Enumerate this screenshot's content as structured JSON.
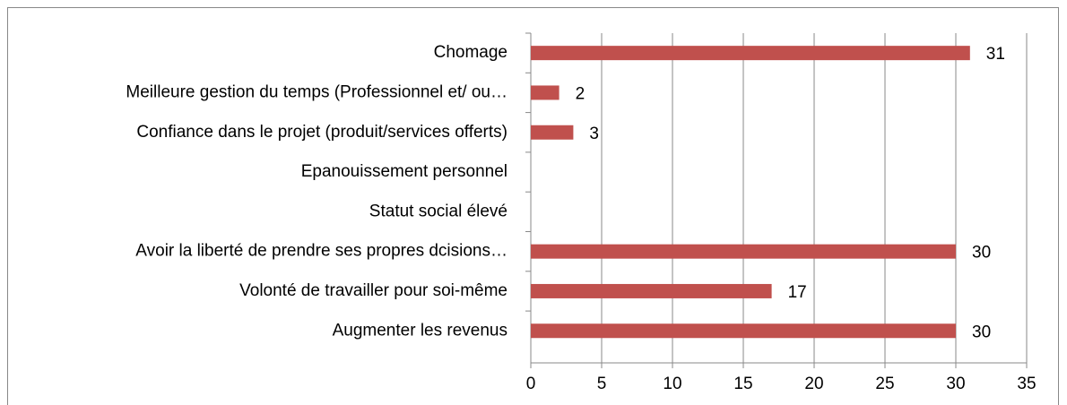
{
  "chart_data": {
    "type": "bar",
    "orientation": "horizontal",
    "categories": [
      "Chomage",
      "Meilleure gestion du temps (Professionnel et/ ou…",
      "Confiance dans le projet (produit/services offerts)",
      "Epanouissement personnel",
      "Statut social élevé",
      "Avoir la liberté de prendre ses propres dcisions…",
      "Volonté de travailler pour soi-même",
      "Augmenter les revenus"
    ],
    "values": [
      31,
      2,
      3,
      null,
      null,
      30,
      17,
      30
    ],
    "color": "#c0504d",
    "xlim": [
      0,
      35
    ],
    "xticks": [
      0,
      5,
      10,
      15,
      20,
      25,
      30,
      35
    ],
    "grid": true
  }
}
